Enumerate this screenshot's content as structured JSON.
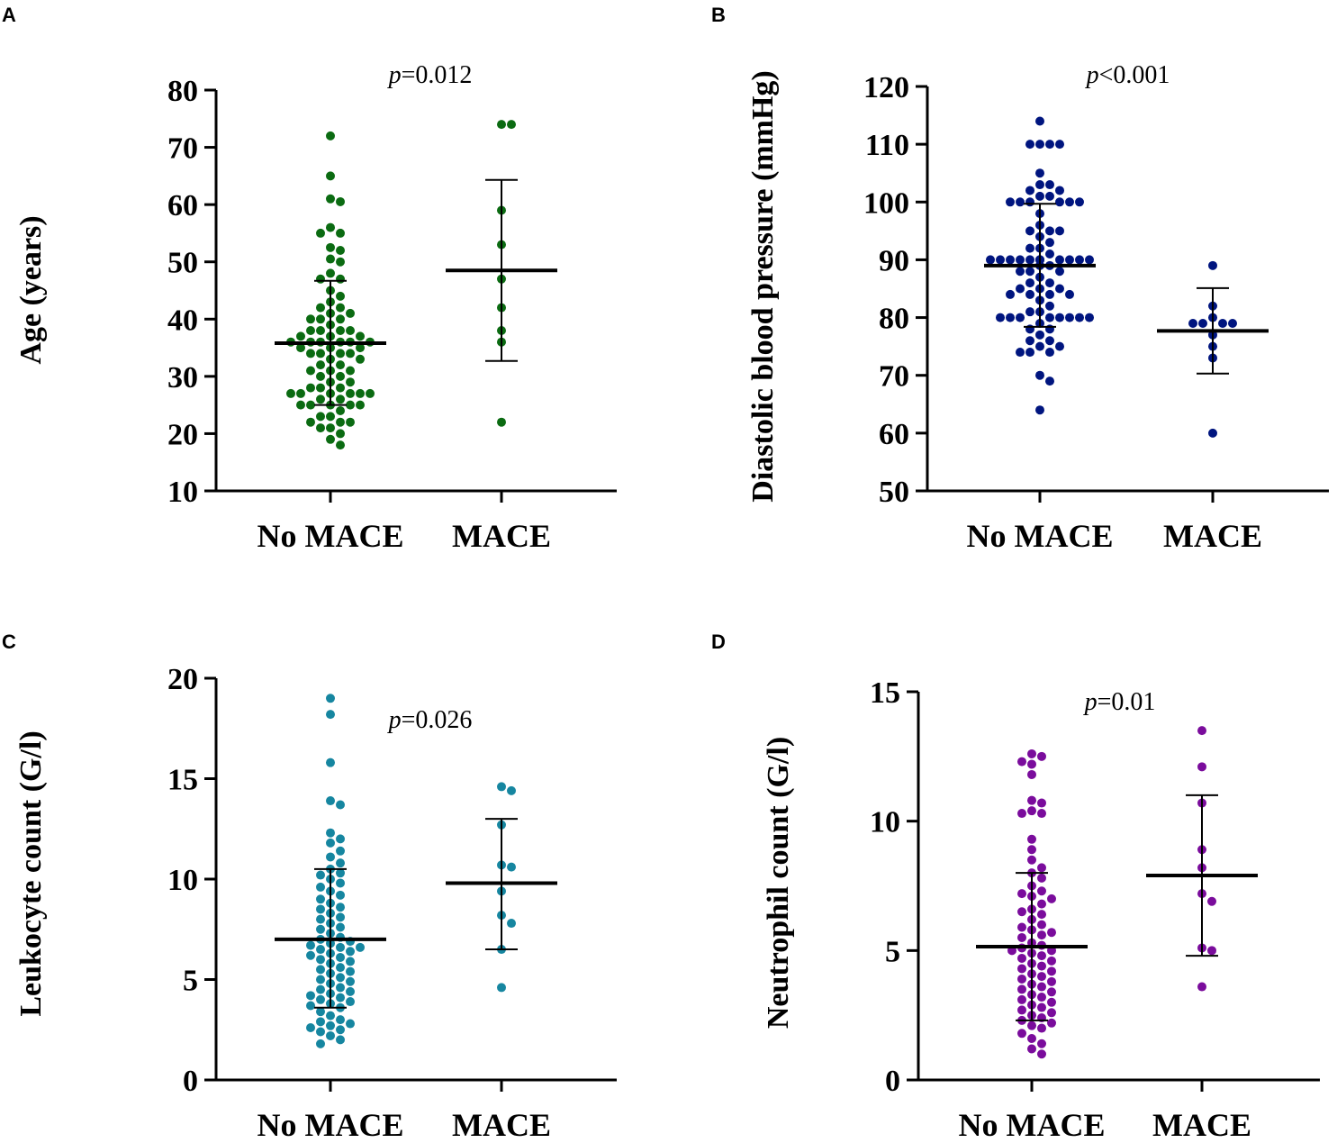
{
  "figure": {
    "panels": [
      {
        "letter": "A",
        "p_prefix": "p",
        "p_value_text": "=0.012"
      },
      {
        "letter": "B",
        "p_prefix": "p",
        "p_value_text": "<0.001"
      },
      {
        "letter": "C",
        "p_prefix": "p",
        "p_value_text": "=0.026"
      },
      {
        "letter": "D",
        "p_prefix": "p",
        "p_value_text": "=0.01"
      }
    ]
  },
  "chart_data": [
    {
      "type": "scatter",
      "subtype": "dot-plot with mean and SD",
      "panel": "A",
      "title": "",
      "xlabel": "",
      "ylabel": "Age (years)",
      "ylim": [
        10,
        80
      ],
      "yticks": [
        10,
        20,
        30,
        40,
        50,
        60,
        70,
        80
      ],
      "categories": [
        "No MACE",
        "MACE"
      ],
      "annotation": "p=0.012",
      "color": "#0b6b12",
      "groups": [
        {
          "name": "No MACE",
          "mean": 35.8,
          "sd_low": 25,
          "sd_high": 46.7,
          "values": [
            72,
            65,
            61,
            60.5,
            56,
            55,
            55,
            52.5,
            52,
            50.5,
            50,
            48,
            47,
            47,
            45,
            44,
            43,
            42,
            42,
            41,
            41,
            40,
            40,
            40,
            39,
            38,
            38,
            38,
            38,
            37,
            37,
            37,
            36,
            36,
            36,
            36,
            36,
            36,
            35,
            35,
            35,
            34,
            34,
            34,
            34,
            33,
            33,
            32,
            32,
            31,
            31,
            31,
            30,
            30,
            29,
            29,
            28,
            28,
            28,
            27,
            27,
            27,
            27,
            27,
            27,
            26,
            26,
            25,
            25,
            25,
            25,
            25,
            24,
            23,
            23,
            22,
            22,
            22,
            21,
            21,
            20,
            19,
            18
          ]
        },
        {
          "name": "MACE",
          "mean": 48.5,
          "sd_low": 32.7,
          "sd_high": 64.3,
          "values": [
            74,
            74,
            59,
            53,
            47,
            42,
            38,
            36,
            22
          ]
        }
      ]
    },
    {
      "type": "scatter",
      "subtype": "dot-plot with mean and SD",
      "panel": "B",
      "title": "",
      "xlabel": "",
      "ylabel": "Diastolic blood pressure (mmHg)",
      "ylim": [
        50,
        120
      ],
      "yticks": [
        50,
        60,
        70,
        80,
        90,
        100,
        110,
        120
      ],
      "categories": [
        "No MACE",
        "MACE"
      ],
      "annotation": "p<0.001",
      "color": "#00157f",
      "groups": [
        {
          "name": "No MACE",
          "mean": 89,
          "sd_low": 78.4,
          "sd_high": 99.7,
          "values": [
            114,
            110,
            110,
            110,
            110,
            105,
            103,
            103,
            102,
            102,
            101,
            101,
            100,
            100,
            100,
            100,
            100,
            100,
            98,
            96,
            95,
            95,
            95,
            94,
            93,
            92,
            92,
            91,
            90,
            90,
            90,
            90,
            90,
            90,
            90,
            90,
            90,
            90,
            90,
            90,
            89,
            89,
            88,
            88,
            88,
            87,
            86,
            86,
            85,
            85,
            85,
            84,
            84,
            84,
            84,
            83,
            82,
            81,
            81,
            80,
            80,
            80,
            80,
            80,
            80,
            80,
            80,
            79,
            78,
            78,
            77,
            76,
            76,
            75,
            75,
            74,
            74,
            74,
            70,
            69,
            64
          ]
        },
        {
          "name": "MACE",
          "mean": 77.7,
          "sd_low": 70.3,
          "sd_high": 85.1,
          "values": [
            89,
            82,
            80,
            79,
            79,
            79,
            79,
            77,
            75,
            73,
            60
          ]
        }
      ]
    },
    {
      "type": "scatter",
      "subtype": "dot-plot with mean and SD",
      "panel": "C",
      "title": "",
      "xlabel": "",
      "ylabel": "Leukocyte count (G/l)",
      "ylim": [
        0,
        20
      ],
      "yticks": [
        0,
        5,
        10,
        15,
        20
      ],
      "categories": [
        "No MACE",
        "MACE"
      ],
      "annotation": "p=0.026",
      "color": "#1686a0",
      "groups": [
        {
          "name": "No MACE",
          "mean": 7.0,
          "sd_low": 3.6,
          "sd_high": 10.5,
          "values": [
            19,
            18.2,
            15.8,
            13.9,
            13.7,
            12.3,
            12,
            11.8,
            11.4,
            11.1,
            10.8,
            10.5,
            10.3,
            10.2,
            10,
            9.8,
            9.6,
            9.4,
            9.2,
            9,
            8.8,
            8.6,
            8.5,
            8.3,
            8.1,
            8,
            7.8,
            7.6,
            7.5,
            7.3,
            7.1,
            7,
            6.9,
            6.8,
            6.7,
            6.6,
            6.6,
            6.5,
            6.4,
            6.3,
            6.2,
            6.1,
            6,
            5.9,
            5.8,
            5.6,
            5.5,
            5.4,
            5.3,
            5.1,
            5,
            4.9,
            4.8,
            4.6,
            4.5,
            4.4,
            4.3,
            4.2,
            4.1,
            4,
            3.9,
            3.8,
            3.7,
            3.6,
            3.4,
            3.2,
            3,
            2.9,
            2.8,
            2.7,
            2.6,
            2.5,
            2.4,
            2.2,
            2,
            1.8
          ]
        },
        {
          "name": "MACE",
          "mean": 9.8,
          "sd_low": 6.5,
          "sd_high": 13.0,
          "values": [
            14.6,
            14.4,
            12.7,
            10.7,
            10.6,
            9.4,
            8.2,
            7.8,
            6.5,
            4.6
          ]
        }
      ]
    },
    {
      "type": "scatter",
      "subtype": "dot-plot with mean and SD",
      "panel": "D",
      "title": "",
      "xlabel": "",
      "ylabel": "Neutrophil count (G/l)",
      "ylim": [
        0,
        15
      ],
      "yticks": [
        0,
        5,
        10,
        15
      ],
      "categories": [
        "No MACE",
        "MACE"
      ],
      "annotation": "p=0.01",
      "color": "#7a0c9c",
      "groups": [
        {
          "name": "No MACE",
          "mean": 5.15,
          "sd_low": 2.3,
          "sd_high": 8.0,
          "values": [
            12.6,
            12.5,
            12.3,
            12.2,
            11.8,
            10.8,
            10.7,
            10.4,
            10.3,
            10.3,
            9.3,
            8.9,
            8.5,
            8.2,
            8,
            7.8,
            7.5,
            7.3,
            7.2,
            7.1,
            7,
            6.8,
            6.6,
            6.5,
            6.4,
            6.2,
            6,
            5.9,
            5.8,
            5.7,
            5.6,
            5.5,
            5.3,
            5.2,
            5.1,
            5,
            5,
            4.9,
            4.8,
            4.7,
            4.6,
            4.5,
            4.4,
            4.3,
            4.2,
            4.1,
            4,
            3.9,
            3.8,
            3.7,
            3.6,
            3.5,
            3.4,
            3.3,
            3.2,
            3.1,
            3,
            2.9,
            2.8,
            2.7,
            2.6,
            2.5,
            2.4,
            2.3,
            2.2,
            2.1,
            2,
            1.8,
            1.6,
            1.4,
            1.2,
            1
          ]
        },
        {
          "name": "MACE",
          "mean": 7.9,
          "sd_low": 4.8,
          "sd_high": 11.0,
          "values": [
            13.5,
            12.1,
            10.7,
            8.9,
            8.2,
            7.2,
            6.9,
            5.1,
            5,
            3.6
          ]
        }
      ]
    }
  ]
}
